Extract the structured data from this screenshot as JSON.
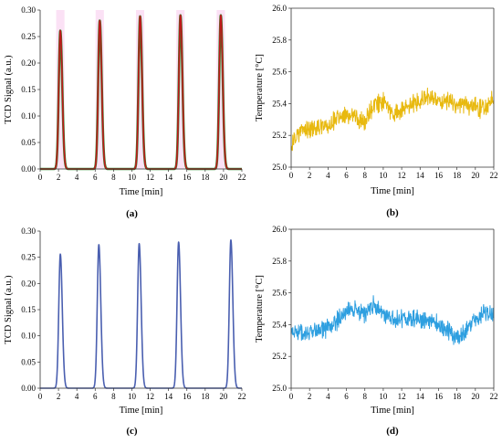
{
  "chart_data": [
    {
      "id": "a",
      "type": "line",
      "panel_label": "(a)",
      "xlabel": "Time [min]",
      "ylabel": "TCD Signal (a.u.)",
      "xlim": [
        0,
        22
      ],
      "ylim": [
        0,
        0.3
      ],
      "xticks": [
        0,
        2,
        4,
        6,
        8,
        10,
        12,
        14,
        16,
        18,
        20,
        22
      ],
      "yticks": [
        "0.00",
        "0.05",
        "0.10",
        "0.15",
        "0.20",
        "0.25",
        "0.30"
      ],
      "grid": false,
      "series": [
        {
          "color": "#2e8b2e",
          "peak_times": [
            2.2,
            6.5,
            10.9,
            15.3,
            19.7
          ],
          "peak_heights": [
            0.261,
            0.28,
            0.288,
            0.29,
            0.29
          ]
        },
        {
          "color": "#c0171b",
          "peak_times": [
            2.2,
            6.5,
            10.9,
            15.3,
            19.7
          ],
          "peak_heights": [
            0.261,
            0.28,
            0.288,
            0.29,
            0.29
          ]
        }
      ],
      "highlight_color": "#f7c9ec"
    },
    {
      "id": "b",
      "type": "line",
      "panel_label": "(b)",
      "xlabel": "Time [min]",
      "ylabel": "Temperature [°C]",
      "xlim": [
        0,
        22
      ],
      "ylim": [
        25.0,
        26.0
      ],
      "xticks": [
        0,
        2,
        4,
        6,
        8,
        10,
        12,
        14,
        16,
        18,
        20,
        22
      ],
      "yticks": [
        "25.0",
        "25.2",
        "25.4",
        "25.6",
        "25.8",
        "26.0"
      ],
      "grid": false,
      "series": [
        {
          "color": "#e8b90f",
          "trend_x": [
            0,
            0.5,
            2,
            4,
            6,
            7,
            8,
            9,
            10,
            11,
            12,
            14,
            15,
            16,
            18,
            20,
            21,
            22
          ],
          "trend_y": [
            25.12,
            25.2,
            25.24,
            25.27,
            25.33,
            25.32,
            25.27,
            25.4,
            25.42,
            25.33,
            25.36,
            25.42,
            25.45,
            25.42,
            25.4,
            25.38,
            25.36,
            25.44
          ]
        }
      ]
    },
    {
      "id": "c",
      "type": "line",
      "panel_label": "(c)",
      "xlabel": "Time [min]",
      "ylabel": "TCD Signal (a.u.)",
      "xlim": [
        0,
        22
      ],
      "ylim": [
        0,
        0.3
      ],
      "xticks": [
        0,
        2,
        4,
        6,
        8,
        10,
        12,
        14,
        16,
        18,
        20,
        22
      ],
      "yticks": [
        "0.00",
        "0.05",
        "0.10",
        "0.15",
        "0.20",
        "0.25",
        "0.30"
      ],
      "grid": false,
      "series": [
        {
          "color": "#4a5fb0",
          "peak_times": [
            2.2,
            6.4,
            10.8,
            15.1,
            20.8
          ],
          "peak_heights": [
            0.256,
            0.274,
            0.276,
            0.279,
            0.283
          ]
        }
      ]
    },
    {
      "id": "d",
      "type": "line",
      "panel_label": "(d)",
      "xlabel": "Time [min]",
      "ylabel": "Temperature [°C]",
      "xlim": [
        0,
        22
      ],
      "ylim": [
        25.0,
        26.0
      ],
      "xticks": [
        0,
        2,
        4,
        6,
        8,
        10,
        12,
        14,
        16,
        18,
        20,
        22
      ],
      "yticks": [
        "25.0",
        "25.2",
        "25.4",
        "25.6",
        "25.8",
        "26.0"
      ],
      "grid": false,
      "series": [
        {
          "color": "#2e9fe0",
          "trend_x": [
            0,
            2,
            4,
            5,
            6,
            7,
            8,
            9,
            10,
            11,
            12,
            14,
            15,
            16,
            17,
            18,
            19,
            20,
            21,
            22
          ],
          "trend_y": [
            25.36,
            25.35,
            25.38,
            25.42,
            25.48,
            25.5,
            25.47,
            25.52,
            25.46,
            25.44,
            25.44,
            25.43,
            25.42,
            25.4,
            25.36,
            25.32,
            25.36,
            25.44,
            25.48,
            25.46
          ]
        }
      ]
    }
  ]
}
